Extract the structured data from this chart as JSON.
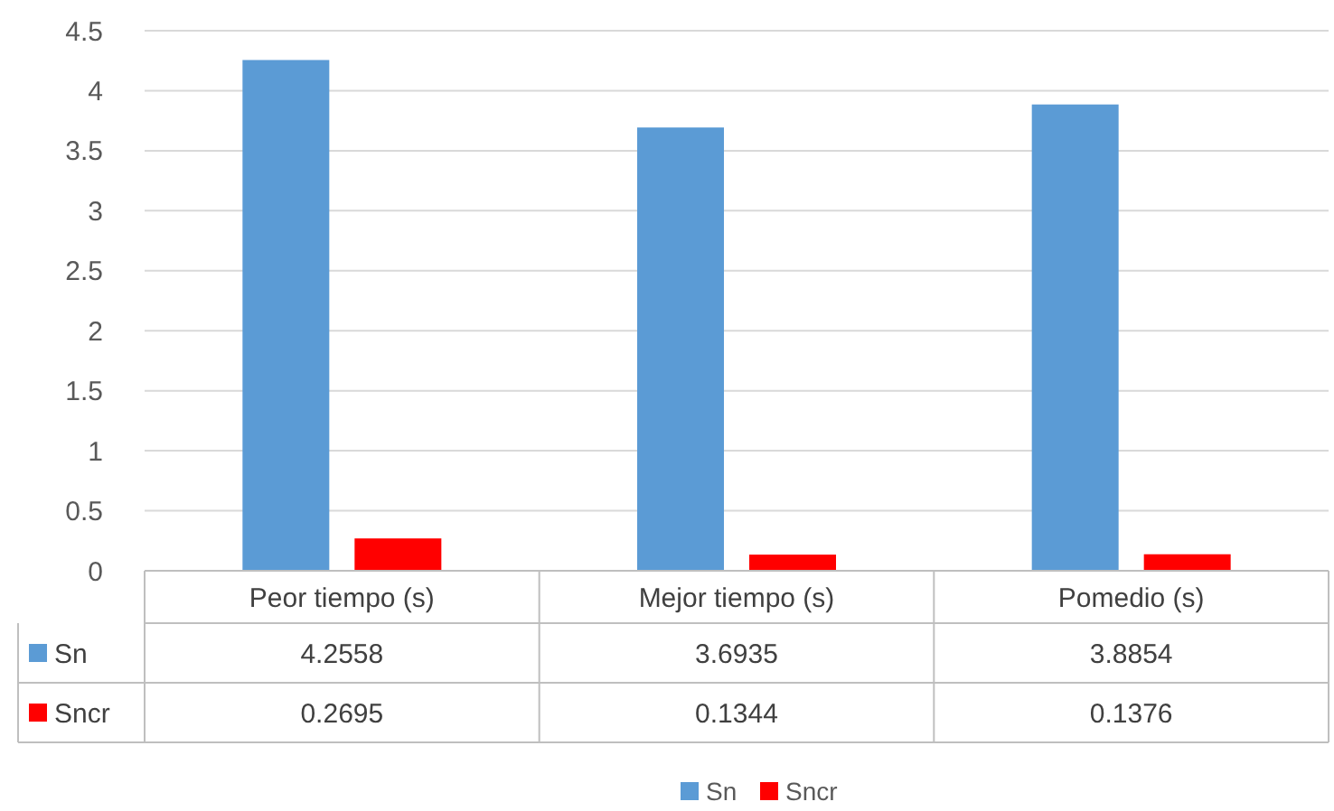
{
  "chart_data": {
    "type": "bar",
    "categories": [
      "Peor tiempo (s)",
      "Mejor tiempo (s)",
      "Pomedio (s)"
    ],
    "series": [
      {
        "name": "Sn",
        "color": "#5b9bd5",
        "values": [
          4.2558,
          3.6935,
          3.8854
        ]
      },
      {
        "name": "Sncr",
        "color": "#ff0000",
        "values": [
          0.2695,
          0.1344,
          0.1376
        ]
      }
    ],
    "ylim": [
      0,
      4.5
    ],
    "yticks": [
      0,
      0.5,
      1,
      1.5,
      2,
      2.5,
      3,
      3.5,
      4,
      4.5
    ],
    "grid": "y",
    "legend": "bottom",
    "data_labels": true
  }
}
